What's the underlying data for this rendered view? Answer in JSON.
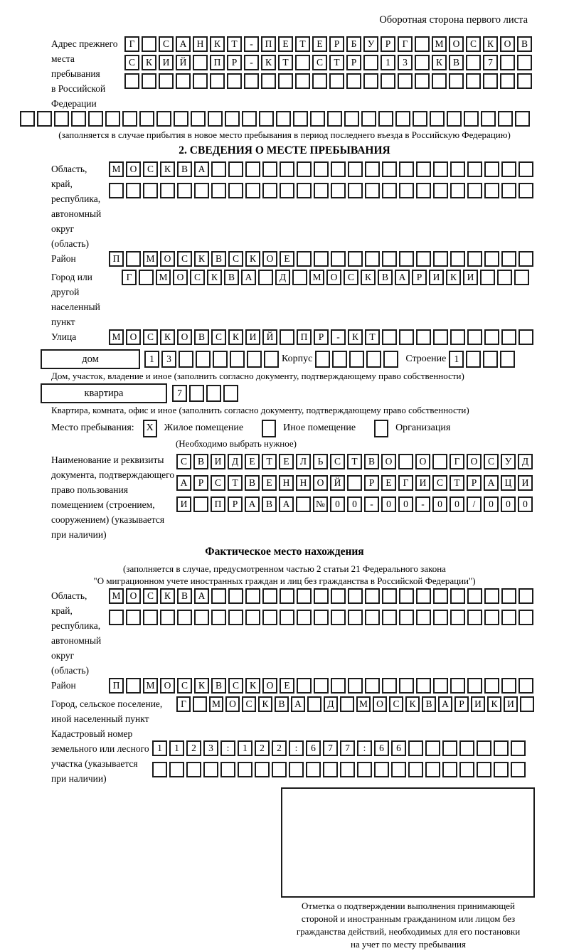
{
  "header": {
    "note": "Оборотная сторона первого листа"
  },
  "prev_address": {
    "label": "Адрес прежнего\nместа пребывания\nв Российской\nФедерации",
    "row1": {
      "n": 24,
      "text": "Г САНКТ-ПЕТЕРБУРГ МОСКОВ"
    },
    "row2": {
      "n": 24,
      "text": "СКИЙ ПР-КТ СТР 13 КВ 7"
    },
    "row3": {
      "n": 24,
      "text": ""
    },
    "row4": {
      "n": 30,
      "text": ""
    },
    "caption": "(заполняется в случае прибытия в новое место пребывания в период последнего въезда в Российскую Федерацию)"
  },
  "section2": {
    "title": "2. СВЕДЕНИЯ О МЕСТЕ ПРЕБЫВАНИЯ",
    "region": {
      "label": "Область, край,\nреспублика,\nавтономный\nокруг (область)",
      "row1": {
        "n": 25,
        "text": "МОСКВА"
      },
      "row2": {
        "n": 25,
        "text": ""
      }
    },
    "district": {
      "label": "Район",
      "row": {
        "n": 25,
        "text": "П МОСКВСКОЕ"
      }
    },
    "city": {
      "label": "Город или другой\nнаселенный пункт",
      "row": {
        "n": 24,
        "text": "Г МОСКВА Д МОСКВАРИКИ"
      }
    },
    "street": {
      "label": "Улица",
      "row": {
        "n": 25,
        "text": "МОСКОВСКИЙ ПР-КТ"
      }
    },
    "house": {
      "box_label": "дом",
      "num": {
        "n": 8,
        "text": "13"
      },
      "korpus_label": "Корпус",
      "korpus": {
        "n": 5,
        "text": ""
      },
      "stroenie_label": "Строение",
      "stroenie": {
        "n": 4,
        "text": "1"
      },
      "caption": "Дом, участок, владение и иное (заполнить согласно документу, подтверждающему право собственности)"
    },
    "apartment": {
      "box_label": "квартира",
      "num": {
        "n": 4,
        "text": "7"
      },
      "caption": "Квартира, комната, офис и иное (заполнить согласно документу, подтверждающему право собственности)"
    },
    "stay": {
      "label": "Место пребывания:",
      "options": [
        {
          "label": "Жилое помещение",
          "mark": "X"
        },
        {
          "label": "Иное помещение",
          "mark": ""
        },
        {
          "label": "Организация",
          "mark": ""
        }
      ],
      "note": "(Необходимо выбрать нужное)"
    },
    "document": {
      "label": "Наименование и реквизиты\nдокумента, подтверждающего\nправо пользования\nпомещением (строением,\nсооружением) (указывается\nпри наличии)",
      "row1": {
        "n": 21,
        "text": "СВИДЕТЕЛЬСТВО О ГОСУД"
      },
      "row2": {
        "n": 21,
        "text": "АРСТВЕННОЙ РЕГИСТРАЦИ"
      },
      "row3": {
        "n": 21,
        "text": "И ПРАВА №00-00-00/000"
      }
    }
  },
  "actual_location": {
    "title": "Фактическое место нахождения",
    "note": "(заполняется в случае, предусмотренном частью 2 статьи 21 Федерального закона\n\"О миграционном учете иностранных граждан и лиц без гражданства в Российской Федерации\")",
    "region": {
      "label": "Область, край,\nреспублика,\nавтономный округ\n(область)",
      "row1": {
        "n": 25,
        "text": "МОСКВА"
      },
      "row2": {
        "n": 25,
        "text": ""
      }
    },
    "district": {
      "label": "Район",
      "row": {
        "n": 25,
        "text": "П МОСКВСКОЕ"
      }
    },
    "city": {
      "label": "Город, сельское поселение,\nиной населенный пункт",
      "row": {
        "n": 22,
        "text": "Г МОСКВА Д МОСКВАРИКИ"
      }
    },
    "cadastre": {
      "label": "Кадастровый номер\nземельного или лесного\nучастка (указывается\nпри наличии)",
      "row1": {
        "n": 22,
        "text": "1123:122:677:66"
      },
      "row2": {
        "n": 22,
        "text": ""
      }
    }
  },
  "stamp": {
    "caption": "Отметка о подтверждении выполнения принимающей\nстороной и иностранным гражданином или лицом без\nгражданства действий, необходимых для его постановки\nна учет по месту пребывания"
  }
}
